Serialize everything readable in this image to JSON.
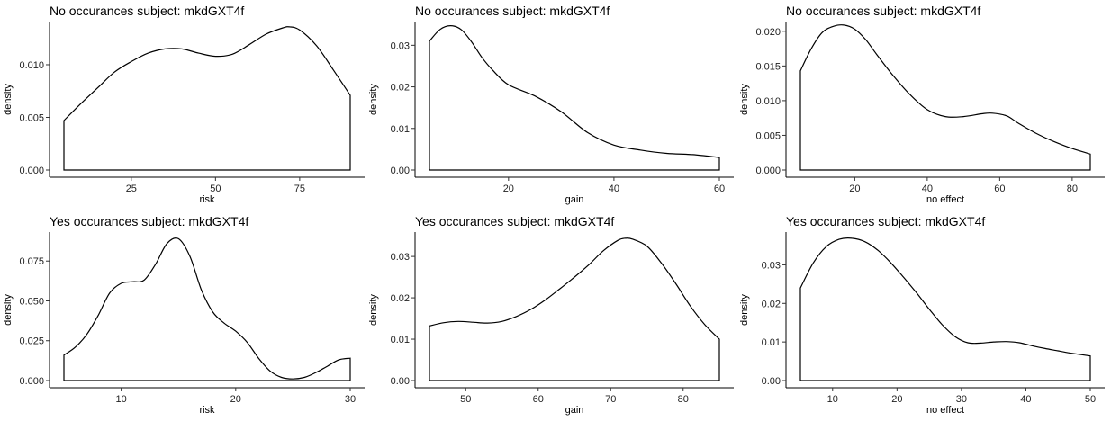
{
  "chart_data": [
    {
      "type": "area",
      "title": "No occurances subject:  mkdGXT4f",
      "xlabel": "risk",
      "ylabel": "density",
      "xlim": [
        5,
        90
      ],
      "ylim": [
        0,
        0.0141
      ],
      "xticks": [
        25,
        50,
        75
      ],
      "yticks": [
        0,
        0.005,
        0.01
      ],
      "ytick_labels": [
        "0.000",
        "0.005",
        "0.010"
      ],
      "grid": false,
      "x": [
        5,
        10,
        15,
        20,
        25,
        30,
        35,
        40,
        45,
        50,
        55,
        60,
        65,
        70,
        72,
        75,
        80,
        85,
        90
      ],
      "y": [
        0.0047,
        0.0063,
        0.0078,
        0.0093,
        0.0103,
        0.0111,
        0.0115,
        0.0115,
        0.0111,
        0.0108,
        0.011,
        0.0119,
        0.0129,
        0.0135,
        0.0136,
        0.0133,
        0.0118,
        0.0095,
        0.0071
      ]
    },
    {
      "type": "area",
      "title": "No occurances subject:  mkdGXT4f",
      "xlabel": "gain",
      "ylabel": "density",
      "xlim": [
        5,
        60
      ],
      "ylim": [
        0,
        0.0357
      ],
      "xticks": [
        20,
        40,
        60
      ],
      "yticks": [
        0,
        0.01,
        0.02,
        0.03
      ],
      "ytick_labels": [
        "0.00",
        "0.01",
        "0.02",
        "0.03"
      ],
      "grid": false,
      "x": [
        5,
        7,
        9,
        11,
        13,
        15,
        17,
        20,
        25,
        30,
        35,
        40,
        45,
        50,
        55,
        60
      ],
      "y": [
        0.031,
        0.0338,
        0.0347,
        0.0338,
        0.0308,
        0.027,
        0.024,
        0.0205,
        0.0178,
        0.014,
        0.009,
        0.006,
        0.0048,
        0.004,
        0.0037,
        0.003
      ]
    },
    {
      "type": "area",
      "title": "No occurances subject:  mkdGXT4f",
      "xlabel": "no effect",
      "ylabel": "density",
      "xlim": [
        5,
        85
      ],
      "ylim": [
        0,
        0.0214
      ],
      "xticks": [
        20,
        40,
        60,
        80
      ],
      "yticks": [
        0,
        0.005,
        0.01,
        0.015,
        0.02
      ],
      "ytick_labels": [
        "0.000",
        "0.005",
        "0.010",
        "0.015",
        "0.020"
      ],
      "grid": false,
      "x": [
        5,
        8,
        11,
        14,
        17,
        20,
        23,
        26,
        30,
        35,
        40,
        45,
        50,
        55,
        58,
        62,
        65,
        70,
        75,
        80,
        85
      ],
      "y": [
        0.0143,
        0.0175,
        0.0198,
        0.0207,
        0.0209,
        0.0203,
        0.0188,
        0.0167,
        0.014,
        0.011,
        0.0087,
        0.0077,
        0.0077,
        0.0081,
        0.0082,
        0.0078,
        0.0068,
        0.0053,
        0.0041,
        0.0031,
        0.0023
      ]
    },
    {
      "type": "area",
      "title": "Yes occurances subject:  mkdGXT4f",
      "xlabel": "risk",
      "ylabel": "density",
      "xlim": [
        5,
        30
      ],
      "ylim": [
        0,
        0.0932
      ],
      "xticks": [
        10,
        20,
        30
      ],
      "yticks": [
        0,
        0.025,
        0.05,
        0.075
      ],
      "ytick_labels": [
        "0.000",
        "0.025",
        "0.050",
        "0.075"
      ],
      "grid": false,
      "x": [
        5,
        6,
        7,
        8,
        9,
        10,
        11,
        12,
        13,
        14,
        15,
        16,
        17,
        18,
        19,
        20,
        21,
        22,
        23,
        24,
        25,
        26,
        27,
        28,
        29,
        30
      ],
      "y": [
        0.016,
        0.021,
        0.029,
        0.041,
        0.055,
        0.061,
        0.062,
        0.063,
        0.073,
        0.086,
        0.089,
        0.078,
        0.057,
        0.043,
        0.036,
        0.031,
        0.024,
        0.014,
        0.006,
        0.002,
        0.001,
        0.002,
        0.005,
        0.009,
        0.013,
        0.014
      ]
    },
    {
      "type": "area",
      "title": "Yes occurances subject:  mkdGXT4f",
      "xlabel": "gain",
      "ylabel": "density",
      "xlim": [
        45,
        85
      ],
      "ylim": [
        0,
        0.0359
      ],
      "xticks": [
        50,
        60,
        70,
        80
      ],
      "yticks": [
        0,
        0.01,
        0.02,
        0.03
      ],
      "ytick_labels": [
        "0.00",
        "0.01",
        "0.02",
        "0.03"
      ],
      "grid": false,
      "x": [
        45,
        47,
        49,
        51,
        53,
        55,
        57,
        59,
        61,
        63,
        65,
        67,
        69,
        71,
        72,
        73,
        75,
        77,
        79,
        81,
        83,
        85
      ],
      "y": [
        0.0132,
        0.014,
        0.0143,
        0.0141,
        0.0139,
        0.0143,
        0.0155,
        0.0172,
        0.0195,
        0.0222,
        0.025,
        0.028,
        0.0314,
        0.0339,
        0.0344,
        0.0342,
        0.0325,
        0.0284,
        0.0234,
        0.018,
        0.0135,
        0.01
      ]
    },
    {
      "type": "area",
      "title": "Yes occurances subject:  mkdGXT4f",
      "xlabel": "no effect",
      "ylabel": "density",
      "xlim": [
        5,
        50
      ],
      "ylim": [
        0,
        0.0385
      ],
      "xticks": [
        10,
        20,
        30,
        40,
        50
      ],
      "yticks": [
        0,
        0.01,
        0.02,
        0.03
      ],
      "ytick_labels": [
        "0.00",
        "0.01",
        "0.02",
        "0.03"
      ],
      "grid": false,
      "x": [
        5,
        7,
        9,
        11,
        13,
        15,
        17,
        19,
        21,
        23,
        25,
        27,
        29,
        31,
        33,
        35,
        37,
        39,
        41,
        43,
        45,
        47,
        50
      ],
      "y": [
        0.024,
        0.0305,
        0.0347,
        0.0366,
        0.0369,
        0.036,
        0.0338,
        0.0306,
        0.0268,
        0.0228,
        0.0185,
        0.0145,
        0.0114,
        0.0098,
        0.0097,
        0.01,
        0.0101,
        0.0098,
        0.009,
        0.0083,
        0.0077,
        0.0071,
        0.0064
      ]
    }
  ]
}
